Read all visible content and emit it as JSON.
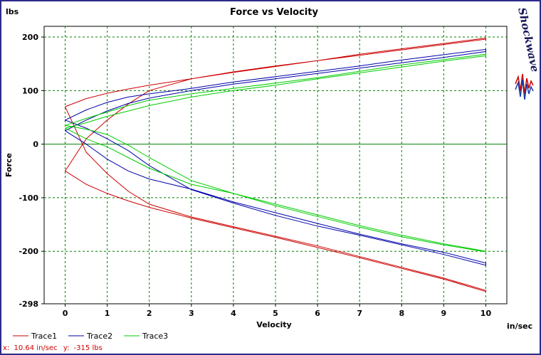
{
  "chart_data": {
    "type": "line",
    "title": "Force vs Velocity",
    "xlabel": "Velocity",
    "ylabel": "Force",
    "x_unit": "in/sec",
    "y_unit": "lbs",
    "xlim": [
      -0.5,
      10.5
    ],
    "ylim": [
      -298,
      220
    ],
    "x_ticks": [
      0,
      1,
      2,
      3,
      4,
      5,
      6,
      7,
      8,
      9,
      10
    ],
    "y_ticks": [
      200,
      100,
      0,
      -100,
      -200,
      -298
    ],
    "grid": true,
    "legend_position": "bottom-left",
    "series": [
      {
        "name": "Trace1",
        "color": "#cc0000",
        "x": [
          0,
          0.5,
          1,
          1.5,
          2,
          3,
          4,
          5,
          6,
          7,
          8,
          9,
          10,
          10,
          9,
          8,
          7,
          6,
          5,
          4,
          3,
          2,
          1.5,
          1,
          0.5,
          0,
          0,
          0.5,
          1,
          1.5,
          2,
          3,
          4,
          5,
          6,
          7,
          8,
          9,
          10,
          10,
          9,
          8,
          7,
          6,
          5,
          4,
          3,
          2,
          1.5,
          1,
          0.5,
          0
        ],
        "y": [
          70,
          85,
          95,
          103,
          110,
          122,
          134,
          145,
          156,
          166,
          176,
          186,
          196,
          198,
          188,
          178,
          168,
          156,
          146,
          135,
          122,
          100,
          75,
          45,
          10,
          -50,
          -50,
          -75,
          -92,
          -106,
          -118,
          -138,
          -156,
          -174,
          -193,
          -212,
          -232,
          -252,
          -275,
          -273,
          -250,
          -230,
          -210,
          -190,
          -172,
          -154,
          -136,
          -112,
          -88,
          -55,
          -15,
          70
        ]
      },
      {
        "name": "Trace2",
        "color": "#0000aa",
        "x": [
          0,
          0.5,
          1,
          1.5,
          2,
          3,
          4,
          5,
          6,
          7,
          8,
          9,
          10,
          10,
          9,
          8,
          7,
          6,
          5,
          4,
          3,
          2,
          1.5,
          1,
          0.5,
          0,
          0,
          0.5,
          1,
          1.5,
          2,
          3,
          4,
          5,
          6,
          7,
          8,
          9,
          10,
          10,
          9,
          8,
          7,
          6,
          5,
          4,
          3,
          2,
          1.5,
          1,
          0.5,
          0
        ],
        "y": [
          25,
          45,
          62,
          76,
          86,
          100,
          112,
          122,
          132,
          142,
          152,
          162,
          173,
          177,
          167,
          157,
          146,
          136,
          126,
          116,
          104,
          94,
          88,
          78,
          64,
          45,
          45,
          30,
          10,
          -12,
          -40,
          -85,
          -110,
          -133,
          -153,
          -170,
          -188,
          -206,
          -226,
          -222,
          -202,
          -186,
          -168,
          -148,
          -128,
          -108,
          -84,
          -65,
          -50,
          -28,
          0,
          25
        ]
      },
      {
        "name": "Trace3",
        "color": "#00cc00",
        "x": [
          0,
          0.5,
          1,
          1.5,
          2,
          3,
          4,
          5,
          6,
          7,
          8,
          9,
          10,
          10,
          9,
          8,
          7,
          6,
          5,
          4,
          3,
          2,
          1.5,
          1,
          0.5,
          0,
          0,
          0.5,
          1,
          1.5,
          2,
          3,
          4,
          5,
          6,
          7,
          8,
          9,
          10,
          10,
          9,
          8,
          7,
          6,
          5,
          4,
          3,
          2,
          1.5,
          1,
          0.5,
          0
        ],
        "y": [
          30,
          40,
          52,
          62,
          72,
          88,
          100,
          110,
          122,
          133,
          144,
          155,
          165,
          168,
          158,
          148,
          136,
          124,
          114,
          104,
          94,
          82,
          72,
          60,
          48,
          35,
          35,
          28,
          18,
          -2,
          -25,
          -68,
          -92,
          -115,
          -135,
          -155,
          -173,
          -188,
          -201,
          -200,
          -186,
          -170,
          -152,
          -132,
          -112,
          -92,
          -75,
          -45,
          -25,
          -5,
          10,
          30
        ]
      }
    ]
  },
  "readout": {
    "x_label": "x:",
    "x_value": "10.64 in/sec",
    "y_label": "y:",
    "y_value": "-315 lbs"
  },
  "logo": {
    "text": "Shockwave",
    "accent_red": "#cc0000",
    "accent_blue": "#1a3aa0"
  },
  "colors": {
    "grid": "#008000",
    "zero_line": "#008000",
    "frame": "#2a2a8a"
  }
}
